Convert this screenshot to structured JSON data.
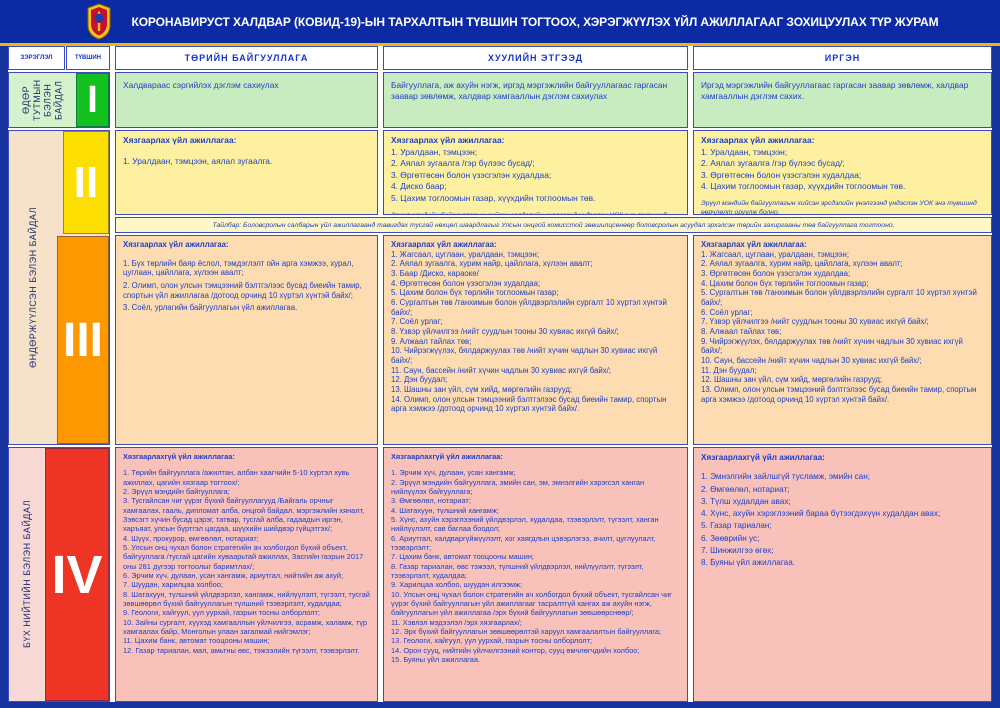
{
  "title": "КОРОНАВИРУСТ ХАЛДВАР (КОВИД-19)-ЫН ТАРХАЛТЫН ТҮВШИН ТОГТООХ, ХЭРЭГЖҮҮЛЭХ ҮЙЛ АЖИЛЛАГААГ ЗОХИЦУУЛАХ ТҮР ЖУРАМ",
  "columns": {
    "category": "ЗЭРЭГЛЭЛ",
    "level": "ТҮВШИН",
    "gov": "ТӨРИЙН БАЙГУУЛЛАГА",
    "legal": "ХУУЛИЙН ЭТГЭЭД",
    "citizen": "ИРГЭН"
  },
  "levels": {
    "daily": {
      "numeral": "I",
      "category": "ӨДӨР ТУТМЫН БЭЛЭН БАЙДАЛ"
    },
    "heightened": {
      "numeral_ii": "II",
      "numeral_iii": "III",
      "category": "ӨНДӨРЖҮҮЛСЭН БЭЛЭН БАЙДАЛ"
    },
    "public": {
      "numeral": "IV",
      "category": "БҮХ НИЙТИЙН БЭЛЭН БАЙДАЛ"
    }
  },
  "colors": {
    "header_blue": "#0b2aa4",
    "gold": "#edba00",
    "text_blue": "#1e3fc8",
    "level1_green": "#12c01e",
    "level2_yellow": "#fcdf00",
    "level3_orange": "#fe9800",
    "level4_red": "#ee3424"
  },
  "rows": {
    "r1": {
      "gov": "Халдвараас сэргийлэх дэглэм сахиулах",
      "legal": "Байгууллага, аж ахуйн нэгж, иргэд мэргэжлийн байгууллагаас гаргасан заавар зөвлөмж, халдвар хамгааллын дэглэм сахиулах",
      "citizen": "Иргэд мэргэжлийн байгууллагаас гаргасан заавар зөвлөмж, халдвар хамгааллын дэглэм сахих."
    },
    "r2": {
      "heading": "Хязгаарлах үйл ажиллагаа:",
      "gov_items": [
        "1. Уралдаан, тэмцээн, аялал зугаалга."
      ],
      "legal_items": [
        "1. Уралдаан, тэмцээн;",
        "2. Аялал зугаалга /гэр бүлээс бусад/;",
        "3. Өргөтгөсөн болон үзэсгэлэн худалдаа;",
        "4. Диско баар;",
        "5. Цахим тоглоомын газар, хүүхдийн тоглоомын төв."
      ],
      "citizen_items": [
        "1. Уралдаан, тэмцээн;",
        "2. Аялал зугаалга /гэр бүлээс бусад/;",
        "3. Өргөтгөсөн болон үзэсгэлэн худалдаа;",
        "4. Цахим тоглоомын газар, хүүхдийн тоглоомын төв."
      ],
      "risk_note": "Эрүүл мэндийн байгууллагын хийсэн эрсдэлийн үнэлгээнд үндэслэн УОК энэ түвшинд өөрчлөлт оруулж болно."
    },
    "footnote": "Тайлбар: Боловсролын салбарын үйл ажиллагаанд тавигдах тусгай нөхцөл шаардлагыг Улсын онцгой комисстой зөвшилцсөнөөр боловсролын асуудал эрхэлсэн төрийн захиргааны төв байгууллага тогтооно.",
    "r3": {
      "heading": "Хязгаарлах үйл ажиллагаа:",
      "gov_items": [
        "1. Бүх төрлийн баяр ёслол, тэмдэглэлт ойн арга хэмжээ, хурал, цуглаан, цайллага, хүлээн авалт;",
        "2. Олимп, олон улсын тэмцээний бэлтгэлээс бусад биеийн тамир, спортын үйл ажиллагаа /дотоод орчинд 10 хүртэл хүнтэй байх/;",
        "3. Соёл, урлагийн байгууллагын үйл ажиллагаа."
      ],
      "legal_items": [
        "1. Жагсаал, цуглаан, уралдаан, тэмцээн;",
        "2. Аялал зугаалга, хурим найр, цайллага, хүлээн авалт;",
        "3. Баар /Диско, караоке/",
        "4. Өргөтгөсөн болон үзэсгэлэн худалдаа;",
        "5. Цахим болон бүх төрлийн тоглоомын газар;",
        "6. Сургалтын төв /танхимын болон үйлдвэрлэлийн сургалт 10 хүртэл хүнтэй байх/;",
        "7. Соёл урлаг;",
        "8. Үзвэр үйлчилгээ /нийт суудлын тооны 30 хувиас ихгүй байх/;",
        "9. Алжаал тайлах төв;",
        "10. Чийрэгжүүлэх, бялдаржуулах төв /нийт хүчин чадлын 30 хувиас ихгүй байх/;",
        "11. Саун, бассейн /нийт хүчин чадлын 30 хувиас ихгүй байх/;",
        "12. Дэн буудал;",
        "13. Шашны зан үйл, сүм хийд, мөргөлийн газрууд;",
        "14. Олимп, олон улсын тэмцээний бэлтгэлээс бусад биеийн тамир, спортын арга хэмжээ /дотоод орчинд 10 хүртэл хүнтэй байх/."
      ],
      "citizen_items": [
        "1. Жагсаал, цуглаан, уралдаан, тэмцээн;",
        "2. Аялал зугаалга, хурим найр, цайллага, хүлээн авалт;",
        "3. Өргөтгөсөн болон үзэсгэлэн худалдаа;",
        "4. Цахим болон бүх төрлийн тоглоомын газар;",
        "5. Сургалтын төв /танхимын болон үйлдвэрлэлийн сургалт 10 хүртэл хүнтэй байх/;",
        "6. Соёл урлаг;",
        "7. Үзвэр үйлчилгээ /нийт суудлын тооны 30 хувиас ихгүй байх/;",
        "8. Алжаал тайлах төв;",
        "9. Чийрэгжүүлэх, бялдаржуулах төв /нийт хүчин чадлын 30 хувиас ихгүй байх/;",
        "10. Саун, бассейн /нийт хүчин чадлын 30 хувиас ихгүй байх/;",
        "11. Дэн буудал;",
        "12. Шашны зан үйл, сүм хийд, мөргөлийн газрууд;",
        "13. Олимп, олон улсын тэмцээний бэлтгэлээс бусад биеийн тамир, спортын арга хэмжээ /дотоод орчинд 10 хүртэл хүнтэй байх/."
      ]
    },
    "r4": {
      "heading": "Хязгаарлахгүй үйл ажиллагаа:",
      "gov_items": [
        "1. Төрийн байгууллага /ажилтан, албан хаагчийн 5-10 хүртэл хувь ажиллах, цагийн хязгаар тогтоох/;",
        "2. Эрүүл мэндийн байгууллага;",
        "3. Тусгайлсан чиг үүрэг бүхий байгууллагууд /Байгаль орчныг хамгаалах, гааль, дипломат алба, онцгой байдал, мэргэжлийн хяналт, Зэвсэгт хүчин бусад цэрэг, татвар, тусгай алба, гадаадын иргэн, харъяат, улсын бүртгэл цагдаа, шүүхийн шийдвэр гүйцэтгэх/;",
        "4. Шүүх, прокурор, өмгөөлөл, нотариат;",
        "5. Улсын онц чухал болон стратегийн ач холбогдол бүхий объект, байгууллага /тусгай цагийн хуваарьтай ажиллах, Засгийн газрын 2017 оны 281 дүгээр тогтоолыг баримтлах/;",
        "6. Эрчим хүч, дулаан, усан хангамж, ариутгал, нийтийн аж ахуй;",
        "7. Шуудан, харилцаа холбоо;",
        "8. Шатахуун, түлшний үйлдвэрлэл, хангамж, нийлүүлэлт, түгээлт, тусгай зөвшөөрөл бүхий байгууллагын түлшний тээвэрлэлт, худалдаа;",
        "9. Геологи, хайгуул, уул уурхай, газрын тосны олборлолт;",
        "10. Зайны сургалт, хүүхэд хамгааллын үйлчилгээ, асрамж, халамж, түр хамгаалах байр,  Монголын улаан загалмай нийгэмлэг;",
        "11. Цахим банк, автомат тооцооны машин;",
        "12. Газар тариалан, мал, амьтны өвс, тэжээлийн түгээлт, тээвэрлэлт."
      ],
      "legal_items": [
        "1. Эрчим хүч, дулаан, усан хангамж;",
        "2. Эрүүл мэндийн байгууллага, эмийн сан, эм, эмнэлгийн хэрэгсэл ханган нийлүүлэх байгууллага;",
        "3. Өмгөөлөл, нотариат;",
        "4. Шатахуун, түлшний хангамж;",
        "5. Хүнс, ахуйн хэрэглээний үйлдвэрлэл, худалдаа, тээвэрлэлт, түгээлт, ханган нийлүүлэлт, сав баглаа боодол;",
        "6. Ариутгал, халдваргүйжүүлэлт, хог хаягдлын цэвэрлэгээ, ачилт, цуглуулалт, тээвэрлэлт;",
        "7. Цахим банк, автомат тооцооны машин;",
        "8. Газар тариалан, өвс тэжээл, түлшний үйлдвэрлэл, нийлүүлэлт, түгээлт, тээвэрлэлт, худалдаа;",
        "9. Харилцаа холбоо, шуудан илгээмж;",
        "10. Улсын онц чухал болон стратегийн ач холбогдол бүхий объект, тусгайлсан чиг үүрэг бүхий байгууллагын үйл ажиллагааг тасралтгүй хангах аж ахуйн нэгж, байгууллагын үйл ажиллагаа /эрх бүхий байгууллагын зөвшөөрснөөр/;",
        "11. Хэвлэл мэдээлэл /эрх хязгаарлах/;",
        "12. Эрх бүхий байгууллагын зөвшөөрөлтэй харуул хамгаалалтын байгууллага;",
        "13. Геологи, хайгуул, уул уурхай, газрын тосны олборлолт;",
        "14. Орон сууц, нийтийн үйлчилгээний контор, сууц өмчлөгчдийн холбоо;",
        "15. Буяны үйл ажиллагаа."
      ],
      "citizen_items": [
        "1. Эмнэлгийн зайлшгүй тусламж, эмийн сан;",
        "2. Өмгөөлөл, нотариат;",
        "3. Түлш худалдан авах;",
        "4. Хүнс, ахуйн хэрэглээний бараа бүтээгдэхүүн худалдан авах;",
        "5. Газар тариалан;",
        "6. Зөөврийн ус;",
        "7. Шинжилгээ өгөх;",
        "8. Буяны үйл ажиллагаа."
      ]
    }
  }
}
